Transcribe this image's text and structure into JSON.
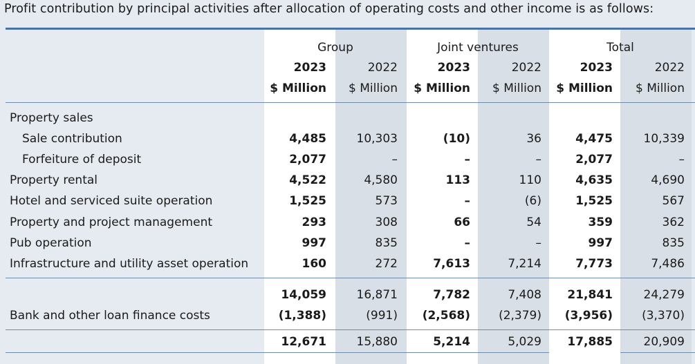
{
  "intro": "Profit contribution by principal activities after allocation of operating costs and other income is as follows:",
  "header": {
    "groups": [
      "Group",
      "Joint ventures",
      "Total"
    ],
    "years": [
      "2023",
      "2022",
      "2023",
      "2022",
      "2023",
      "2022"
    ],
    "units": [
      "$ Million",
      "$ Million",
      "$ Million",
      "$ Million",
      "$ Million",
      "$ Million"
    ]
  },
  "rows": [
    {
      "label": "Property sales",
      "values": [
        "",
        "",
        "",
        "",
        "",
        ""
      ]
    },
    {
      "label": "Sale contribution",
      "values": [
        "4,485",
        "10,303",
        "(10)",
        "36",
        "4,475",
        "10,339"
      ]
    },
    {
      "label": "Forfeiture of deposit",
      "values": [
        "2,077",
        "–",
        "–",
        "–",
        "2,077",
        "–"
      ]
    },
    {
      "label": "Property rental",
      "values": [
        "4,522",
        "4,580",
        "113",
        "110",
        "4,635",
        "4,690"
      ]
    },
    {
      "label": "Hotel and serviced suite operation",
      "values": [
        "1,525",
        "573",
        "–",
        "(6)",
        "1,525",
        "567"
      ]
    },
    {
      "label": "Property and project management",
      "values": [
        "293",
        "308",
        "66",
        "54",
        "359",
        "362"
      ]
    },
    {
      "label": "Pub operation",
      "values": [
        "997",
        "835",
        "–",
        "–",
        "997",
        "835"
      ]
    },
    {
      "label": "Infrastructure and utility asset operation",
      "values": [
        "160",
        "272",
        "7,613",
        "7,214",
        "7,773",
        "7,486"
      ]
    }
  ],
  "subtotal": {
    "label": "",
    "values": [
      "14,059",
      "16,871",
      "7,782",
      "7,408",
      "21,841",
      "24,279"
    ]
  },
  "finance": {
    "label": "Bank and other loan finance costs",
    "values": [
      "(1,388)",
      "(991)",
      "(2,568)",
      "(2,379)",
      "(3,956)",
      "(3,370)"
    ]
  },
  "total": {
    "label": "",
    "values": [
      "12,671",
      "15,880",
      "5,214",
      "5,029",
      "17,885",
      "20,909"
    ]
  },
  "colors": {
    "accent_line": "#4a72a4",
    "background": "#e6ebf1",
    "bold_column": "#ffffff",
    "grey_column": "#d9dfe6"
  }
}
